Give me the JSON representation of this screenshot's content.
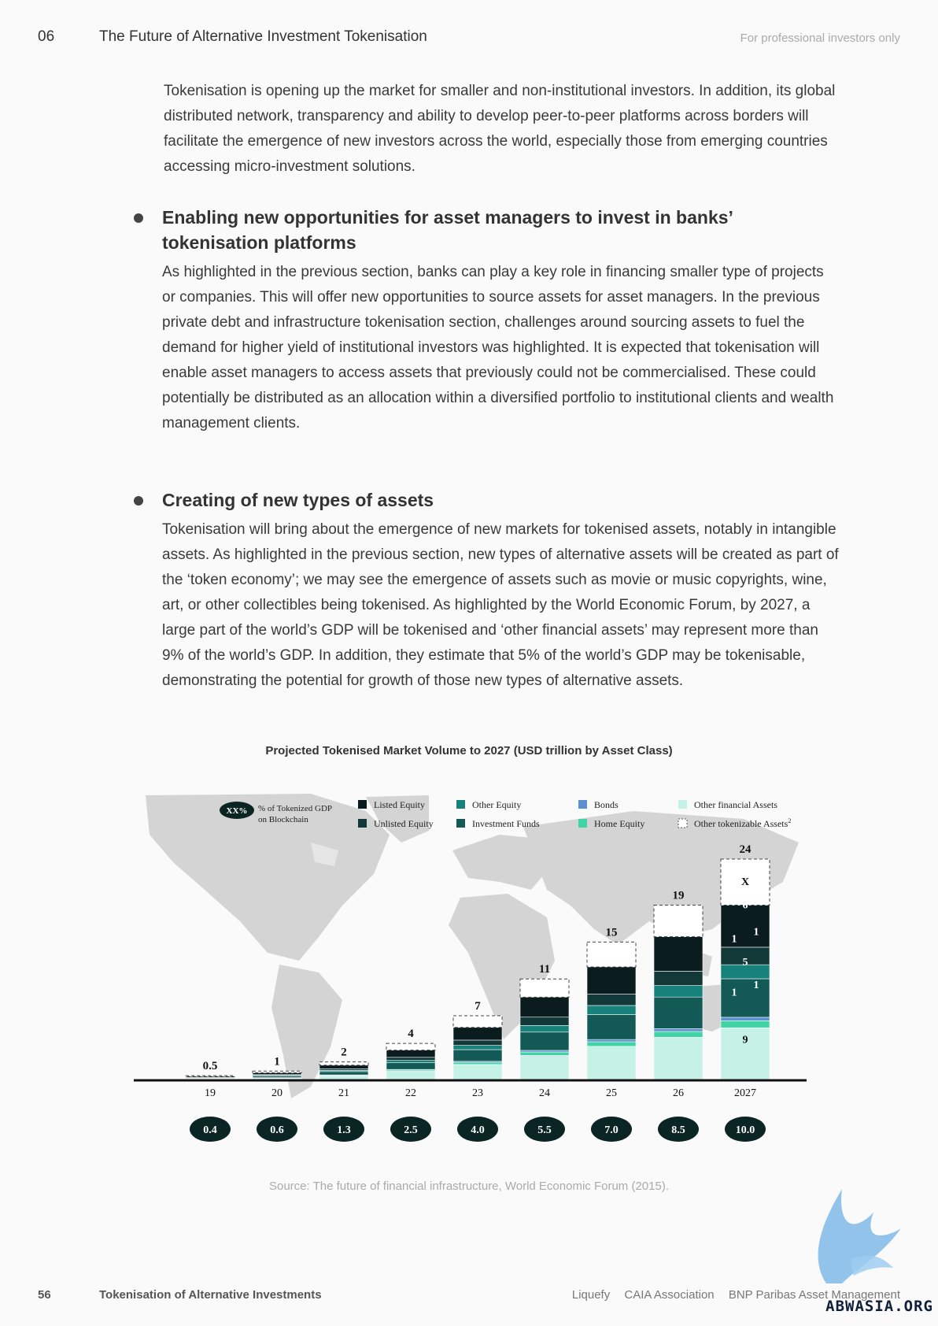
{
  "header": {
    "chapter": "06",
    "title": "The Future of Alternative Investment Tokenisation",
    "audience": "For professional investors only"
  },
  "intro_paragraph": "Tokenisation is opening up the market for smaller and non-institutional investors. In addition, its global distributed network, transparency and ability to develop peer-to-peer platforms across borders will facilitate the emergence of new investors across the world, especially those from emerging countries accessing micro-investment solutions.",
  "sections": [
    {
      "heading": "Enabling new opportunities for asset managers to invest in banks’ tokenisation platforms",
      "body": "As highlighted in the previous section, banks can play a key role in financing smaller type of projects or companies. This will offer new opportunities to source assets for asset managers. In the previous private debt and infrastructure tokenisation section, challenges around sourcing assets to fuel the demand for higher yield of institutional investors was highlighted. It is expected that tokenisation will enable asset managers to access assets that previously could not be commercialised. These could potentially be distributed as an allocation within a diversified portfolio to institutional clients and wealth management clients."
    },
    {
      "heading": "Creating of new types of assets",
      "body": "Tokenisation will bring about the emergence of new markets for tokenised assets, notably in intangible assets. As highlighted in the previous section, new types of alternative assets will be created as part of the ‘token economy’; we may see the emergence of assets such as movie or music copyrights, wine, art, or other collectibles being tokenised. As highlighted by the World Economic Forum, by 2027, a large part of the world’s GDP will be tokenised and ‘other financial assets’ may represent more than 9% of the world’s GDP. In addition, they estimate that 5% of the world’s GDP may be tokenisable, demonstrating the potential for growth of those new types of alternative assets."
    }
  ],
  "chart_data": {
    "type": "bar",
    "title": "Projected Tokenised Market Volume to 2027 (USD trillion by Asset Class)",
    "legend_badge": "XX%",
    "legend_badge_text": [
      "% of Tokenized GDP",
      "on Blockchain"
    ],
    "legend": [
      {
        "name": "Listed Equity",
        "color": "#0a1c1d",
        "dashed": false
      },
      {
        "name": "Unlisted Equity",
        "color": "#123838",
        "dashed": false
      },
      {
        "name": "Other Equity",
        "color": "#16827b",
        "dashed": false
      },
      {
        "name": "Investment Funds",
        "color": "#135a57",
        "dashed": false
      },
      {
        "name": "Bonds",
        "color": "#5b8fd0",
        "dashed": false
      },
      {
        "name": "Home Equity",
        "color": "#3fd4a6",
        "dashed": false
      },
      {
        "name": "Other financial Assets",
        "color": "#c6f1e6",
        "dashed": false
      },
      {
        "name": "Other tokenizable Assets",
        "superscript": "2",
        "color": "#ffffff",
        "dashed": true
      }
    ],
    "categories": [
      "19",
      "20",
      "21",
      "22",
      "23",
      "24",
      "25",
      "26",
      "2027"
    ],
    "totals": [
      0.5,
      1,
      2,
      4,
      7,
      11,
      15,
      19,
      24
    ],
    "total_labels": [
      "0.5",
      "1",
      "2",
      "4",
      "7",
      "11",
      "15",
      "19",
      "24"
    ],
    "gdp_percent_labels": [
      "0.4",
      "0.6",
      "1.3",
      "2.5",
      "4.0",
      "5.5",
      "7.0",
      "8.5",
      "10.0"
    ],
    "final_bar_segment_labels": [
      "9",
      "1",
      "1",
      "5",
      "1",
      "1",
      "6",
      "X"
    ],
    "colors": {
      "badge": "#0b2424",
      "map": "#d2d2d2",
      "axis": "#111111"
    }
  },
  "source": "Source: The future of financial infrastructure, World Economic Forum (2015).",
  "footer": {
    "page_number": "56",
    "title": "Tokenisation of Alternative Investments",
    "partners": [
      "Liquefy",
      "CAIA Association",
      "BNP Paribas Asset Management"
    ]
  },
  "watermark": "ABWASIA.ORG"
}
